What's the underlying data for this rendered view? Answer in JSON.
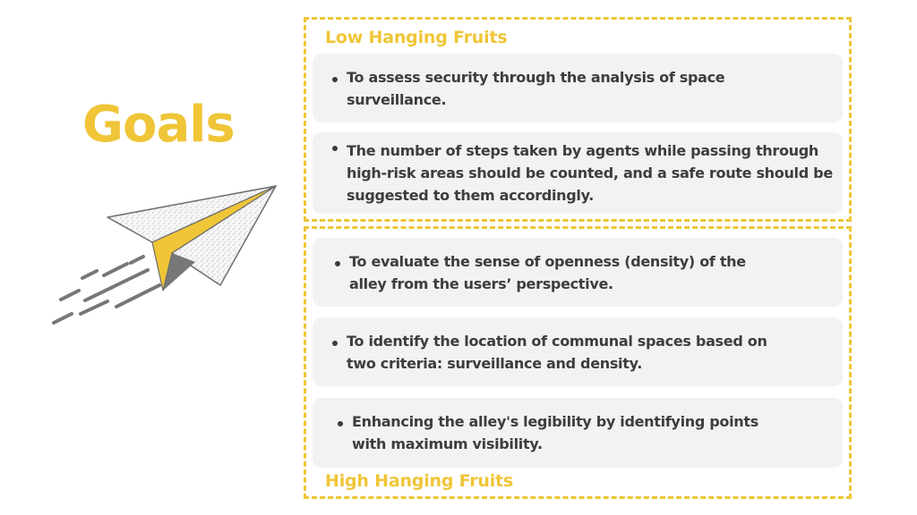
{
  "title": "Goals",
  "illustration": {
    "icon": "paper-plane-icon",
    "colors": {
      "wing": "#f0c537",
      "body": "#f7f7f7",
      "shadow": "#777777",
      "speed_lines": "#777777"
    }
  },
  "sections": {
    "low": {
      "label": "Low Hanging Fruits",
      "items": [
        "To assess security through the analysis of space surveillance.",
        "The number of steps taken by agents while passing through high-risk areas should be counted, and a safe route should be suggested to them accordingly."
      ]
    },
    "high": {
      "label": "High Hanging Fruits",
      "items": [
        "To evaluate the sense of openness (density) of the alley from the users’ perspective.",
        "To identify the location of communal spaces based on two criteria: surveillance and density.",
        "Enhancing the alley's legibility by identifying points with maximum visibility."
      ]
    }
  },
  "colors": {
    "accent": "#f0c537",
    "card_background": "#f2f2f2",
    "text": "#3d3d3d"
  }
}
